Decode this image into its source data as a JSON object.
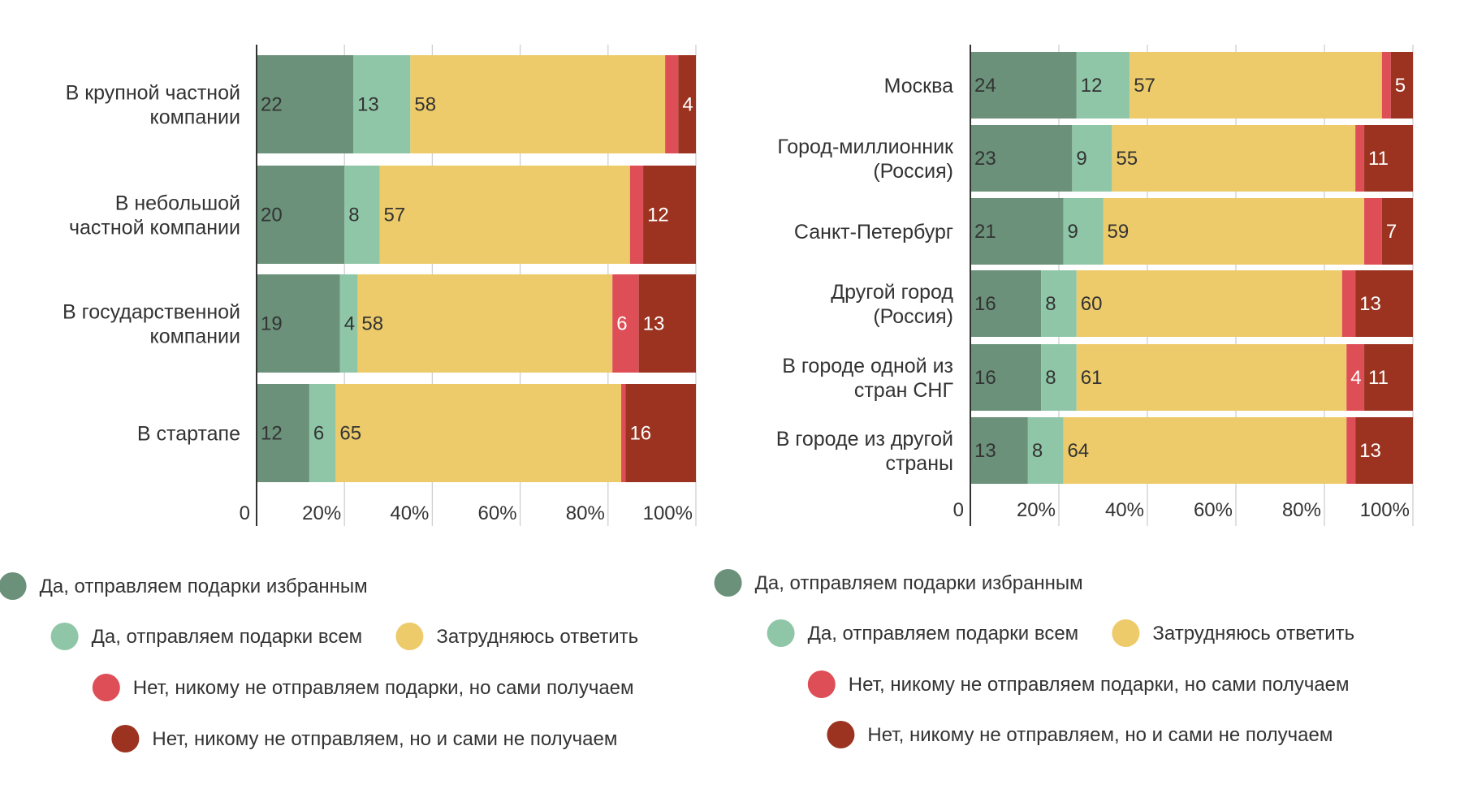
{
  "series_colors": [
    "#6b917a",
    "#8fc6a8",
    "#edcb6a",
    "#dd4e56",
    "#9b3320"
  ],
  "value_label_colors": [
    "#333333",
    "#333333",
    "#333333",
    "#ffffff",
    "#ffffff"
  ],
  "chart_data": [
    {
      "type": "bar",
      "orientation": "horizontal",
      "stacked": true,
      "categories": [
        "В крупной частной компании",
        "В небольшой частной компании",
        "В государственной компании",
        "В стартапе"
      ],
      "series": [
        {
          "name": "Да, отправляем подарки избранным",
          "values": [
            22,
            20,
            19,
            12
          ]
        },
        {
          "name": "Да, отправляем подарки всем",
          "values": [
            13,
            8,
            4,
            6
          ]
        },
        {
          "name": "Затрудняюсь ответить",
          "values": [
            58,
            57,
            58,
            65
          ]
        },
        {
          "name": "Нет, никому не отправляем подарки, но сами получаем",
          "values": [
            3,
            3,
            6,
            1
          ]
        },
        {
          "name": "Нет, никому не отправляем, но и сами не получаем",
          "values": [
            4,
            12,
            13,
            16
          ]
        }
      ],
      "value_labels": [
        [
          "22",
          "13",
          "58",
          "",
          "4"
        ],
        [
          "20",
          "8",
          "57",
          "",
          "12"
        ],
        [
          "19",
          "4",
          "58",
          "6",
          "13"
        ],
        [
          "12",
          "6",
          "65",
          "",
          "16"
        ]
      ],
      "xlim": [
        0,
        100
      ],
      "xticks": [
        "0",
        "20%",
        "40%",
        "60%",
        "80%",
        "100%"
      ],
      "grid": true,
      "legend_position": "bottom"
    },
    {
      "type": "bar",
      "orientation": "horizontal",
      "stacked": true,
      "categories": [
        "Москва",
        "Город-миллионник (Россия)",
        "Санкт-Петербург",
        "Другой город (Россия)",
        "В городе одной из стран СНГ",
        "В городе из другой страны"
      ],
      "series": [
        {
          "name": "Да, отправляем подарки избранным",
          "values": [
            24,
            23,
            21,
            16,
            16,
            13
          ]
        },
        {
          "name": "Да, отправляем подарки всем",
          "values": [
            12,
            9,
            9,
            8,
            8,
            8
          ]
        },
        {
          "name": "Затрудняюсь ответить",
          "values": [
            57,
            55,
            59,
            60,
            61,
            64
          ]
        },
        {
          "name": "Нет, никому не отправляем подарки, но сами получаем",
          "values": [
            2,
            2,
            4,
            3,
            4,
            2
          ]
        },
        {
          "name": "Нет, никому не отправляем, но и сами не получаем",
          "values": [
            5,
            11,
            7,
            13,
            11,
            13
          ]
        }
      ],
      "value_labels": [
        [
          "24",
          "12",
          "57",
          "",
          "5"
        ],
        [
          "23",
          "9",
          "55",
          "",
          "11"
        ],
        [
          "21",
          "9",
          "59",
          "",
          "7"
        ],
        [
          "16",
          "8",
          "60",
          "",
          "13"
        ],
        [
          "16",
          "8",
          "61",
          "4",
          "11"
        ],
        [
          "13",
          "8",
          "64",
          "",
          "13"
        ]
      ],
      "xlim": [
        0,
        100
      ],
      "xticks": [
        "0",
        "20%",
        "40%",
        "60%",
        "80%",
        "100%"
      ],
      "grid": true,
      "legend_position": "bottom"
    }
  ]
}
